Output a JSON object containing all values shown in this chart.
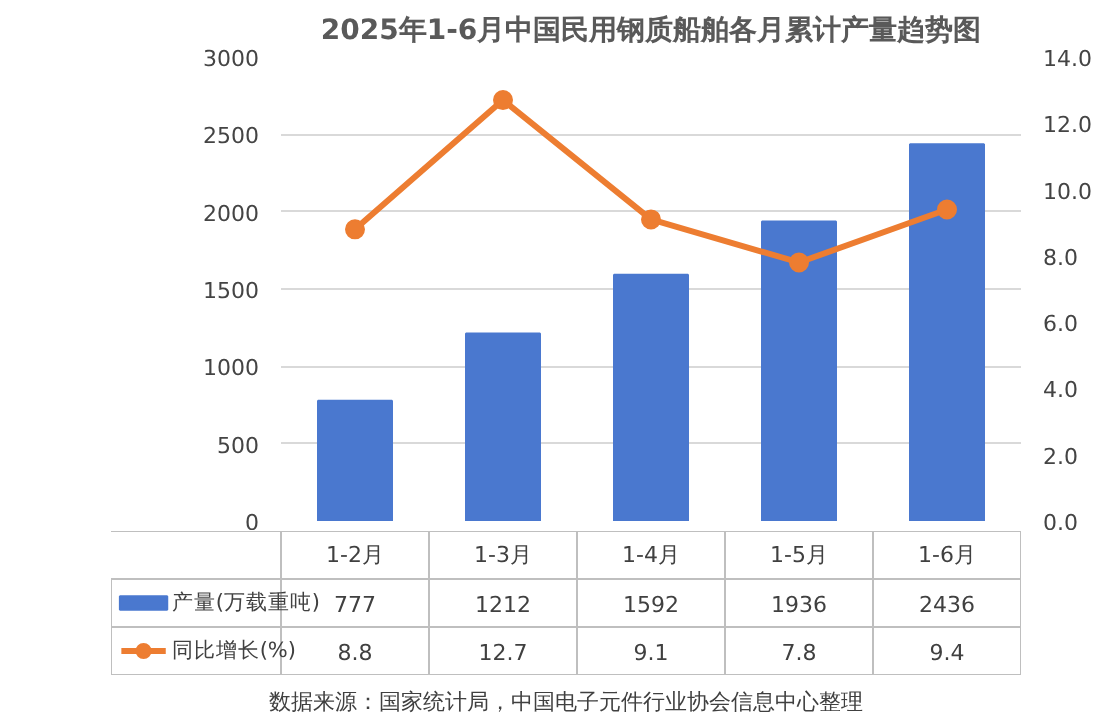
{
  "chart_data": {
    "type": "bar",
    "title": "2025年1-6月中国民用钢质船舶各月累计产量趋势图",
    "categories": [
      "1-2月",
      "1-3月",
      "1-4月",
      "1-5月",
      "1-6月"
    ],
    "series": [
      {
        "name": "产量(万载重吨)",
        "color": "#4a78cf",
        "values": [
          777,
          1212,
          1592,
          1936,
          2436
        ]
      },
      {
        "name": "同比增长(%)",
        "type": "line",
        "axis": "y2",
        "color": "#ed7d31",
        "values": [
          8.8,
          12.7,
          9.1,
          7.8,
          9.4
        ]
      }
    ],
    "ylim": [
      0,
      3000
    ],
    "yticks": [
      0,
      500,
      1000,
      1500,
      2000,
      2500,
      3000
    ],
    "y2lim": [
      0,
      14
    ],
    "y2ticks": [
      {
        "value": 0,
        "label": "0.0"
      },
      {
        "value": 2,
        "label": "2.0"
      },
      {
        "value": 4,
        "label": "4.0"
      },
      {
        "value": 6,
        "label": "6.0"
      },
      {
        "value": 8,
        "label": "8.0"
      },
      {
        "value": 10,
        "label": "10.0"
      },
      {
        "value": 12,
        "label": "12.0"
      },
      {
        "value": 14,
        "label": "14.0"
      }
    ],
    "grid": "y",
    "legend": "bottom",
    "marker": "circle",
    "data_labels": true,
    "annotations": [
      "数据来源：国家统计局，中国电子元件行业协会信息中心整理"
    ]
  }
}
